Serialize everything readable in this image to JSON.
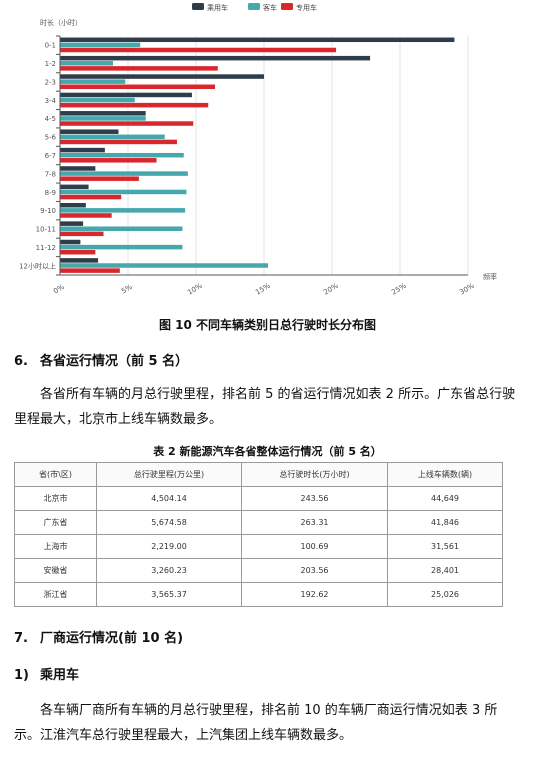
{
  "chart_data": {
    "type": "bar",
    "orientation": "horizontal",
    "ylabel": "时长（小时）",
    "xlabel": "频率",
    "categories": [
      "0-1",
      "1-2",
      "2-3",
      "3-4",
      "4-5",
      "5-6",
      "6-7",
      "7-8",
      "8-9",
      "9-10",
      "10-11",
      "11-12",
      "12小时以上"
    ],
    "series": [
      {
        "name": "乘用车",
        "color": "#2f3d4a",
        "values": [
          29.0,
          22.8,
          15.0,
          9.7,
          6.3,
          4.3,
          3.3,
          2.6,
          2.1,
          1.9,
          1.7,
          1.5,
          2.8
        ]
      },
      {
        "name": "客车",
        "color": "#45a8ad",
        "values": [
          5.9,
          3.9,
          4.8,
          5.5,
          6.3,
          7.7,
          9.1,
          9.4,
          9.3,
          9.2,
          9.0,
          9.0,
          15.3
        ]
      },
      {
        "name": "专用车",
        "color": "#d9272e",
        "values": [
          20.3,
          11.6,
          11.4,
          10.9,
          9.8,
          8.6,
          7.1,
          5.8,
          4.5,
          3.8,
          3.2,
          2.6,
          4.4
        ]
      }
    ],
    "xticks": [
      "0%",
      "5%",
      "10%",
      "15%",
      "20%",
      "25%",
      "30%"
    ],
    "xlim": [
      0,
      30
    ],
    "grid": true,
    "legend": "top-center"
  },
  "figure_caption": "图 10  不同车辆类别日总行驶时长分布图",
  "section6": {
    "num": "6.",
    "title": "各省运行情况（前 5 名）",
    "paragraph": "各省所有车辆的月总行驶里程，排名前 5 的省运行情况如表 2 所示。广东省总行驶里程最大，北京市上线车辆数最多。"
  },
  "table2": {
    "caption": "表 2  新能源汽车各省整体运行情况（前 5 名）",
    "headers": [
      "省(市\\区)",
      "总行驶里程(万公里)",
      "总行驶时长(万小时)",
      "上线车辆数(辆)"
    ],
    "rows": [
      [
        "北京市",
        "4,504.14",
        "243.56",
        "44,649"
      ],
      [
        "广东省",
        "5,674.58",
        "263.31",
        "41,846"
      ],
      [
        "上海市",
        "2,219.00",
        "100.69",
        "31,561"
      ],
      [
        "安徽省",
        "3,260.23",
        "203.56",
        "28,401"
      ],
      [
        "浙江省",
        "3,565.37",
        "192.62",
        "25,026"
      ]
    ]
  },
  "section7": {
    "num": "7.",
    "title": "厂商运行情况(前 10 名)",
    "sub_num": "1)",
    "sub_title": "乘用车",
    "paragraph": "各车辆厂商所有车辆的月总行驶里程，排名前 10 的车辆厂商运行情况如表 3 所示。江淮汽车总行驶里程最大，上汽集团上线车辆数最多。"
  }
}
